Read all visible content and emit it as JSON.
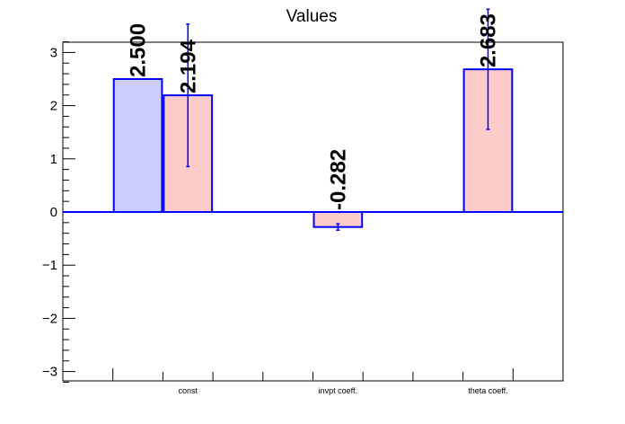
{
  "chart_data": {
    "type": "bar",
    "title": "Values",
    "xlabel": "",
    "ylabel": "",
    "ylim": [
      -3.2,
      3.2
    ],
    "yticks": [
      "−3",
      "−2",
      "−1",
      "0",
      "1",
      "2",
      "3"
    ],
    "categories": [
      "const",
      "invpt coeff.",
      "theta coeff."
    ],
    "series": [
      {
        "color": "#ccccff",
        "values": [
          2.5,
          null,
          null
        ],
        "labels": [
          "2.500",
          "",
          ""
        ]
      },
      {
        "color": "#ffcccc",
        "values": [
          2.194,
          -0.282,
          2.683
        ],
        "errors": [
          1.34,
          0.06,
          1.13
        ],
        "labels": [
          "2.194",
          "-0.282",
          "2.683"
        ]
      }
    ],
    "grid": false,
    "colors": {
      "axis": "#000000",
      "bar_outline": "#0000ff",
      "error_bar": "#0000ff"
    }
  }
}
